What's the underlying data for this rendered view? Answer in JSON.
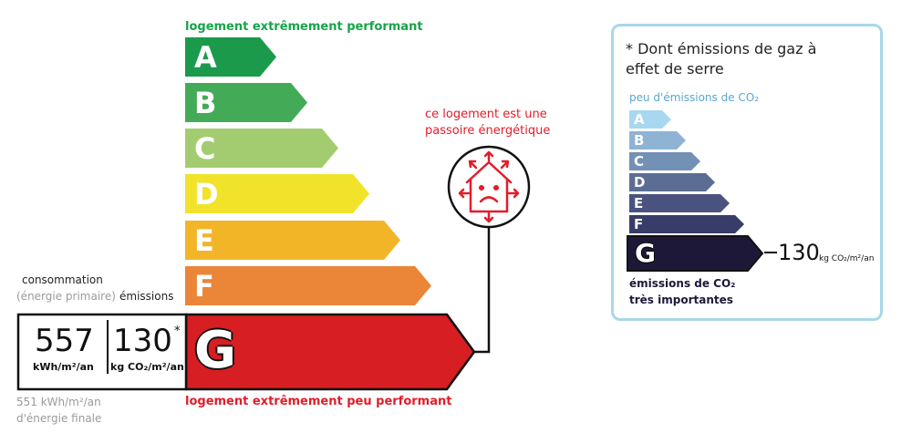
{
  "dpe": {
    "top_label": "logement extrêmement performant",
    "bottom_label": "logement extrêmement peu performant",
    "classes": [
      {
        "letter": "A",
        "color": "#1a9a4a"
      },
      {
        "letter": "B",
        "color": "#43ab57"
      },
      {
        "letter": "C",
        "color": "#a3cc70"
      },
      {
        "letter": "D",
        "color": "#f0e32a"
      },
      {
        "letter": "E",
        "color": "#f2b528"
      },
      {
        "letter": "F",
        "color": "#eb8538"
      },
      {
        "letter": "G",
        "color": "#d71e23"
      }
    ],
    "current_class": "G",
    "consumption_label": "consommation",
    "consumption_sub": "(énergie primaire)",
    "emissions_label": "émissions",
    "consumption_value": "557",
    "consumption_unit": "kWh/m²/an",
    "emissions_value": "130",
    "emissions_star": "*",
    "emissions_unit": "kg CO₂/m²/an",
    "final_energy_line1": "551 kWh/m²/an",
    "final_energy_line2": "d'énergie finale",
    "passoire_line1": "ce logement est une",
    "passoire_line2": "passoire énergétique"
  },
  "ges": {
    "note_line1": "* Dont émissions de gaz à",
    "note_line2": "effet de serre",
    "top_label": "peu d'émissions de CO₂",
    "classes": [
      {
        "letter": "A",
        "color": "#a8d8f0"
      },
      {
        "letter": "B",
        "color": "#8fb4d3"
      },
      {
        "letter": "C",
        "color": "#7390b5"
      },
      {
        "letter": "D",
        "color": "#5c6d94"
      },
      {
        "letter": "E",
        "color": "#4a5380"
      },
      {
        "letter": "F",
        "color": "#373c68"
      },
      {
        "letter": "G",
        "color": "#1e1838"
      }
    ],
    "current_class": "G",
    "value": "130",
    "unit": "kg CO₂/m²/an",
    "bottom_label_line1": "émissions de CO₂",
    "bottom_label_line2": "très importantes"
  },
  "colors": {
    "green_text": "#16a34a",
    "red_text": "#e11d2a",
    "panel_border": "#a8d8ea",
    "ges_top_text": "#5aa7cf",
    "ges_bottom_text": "#1e1838"
  }
}
